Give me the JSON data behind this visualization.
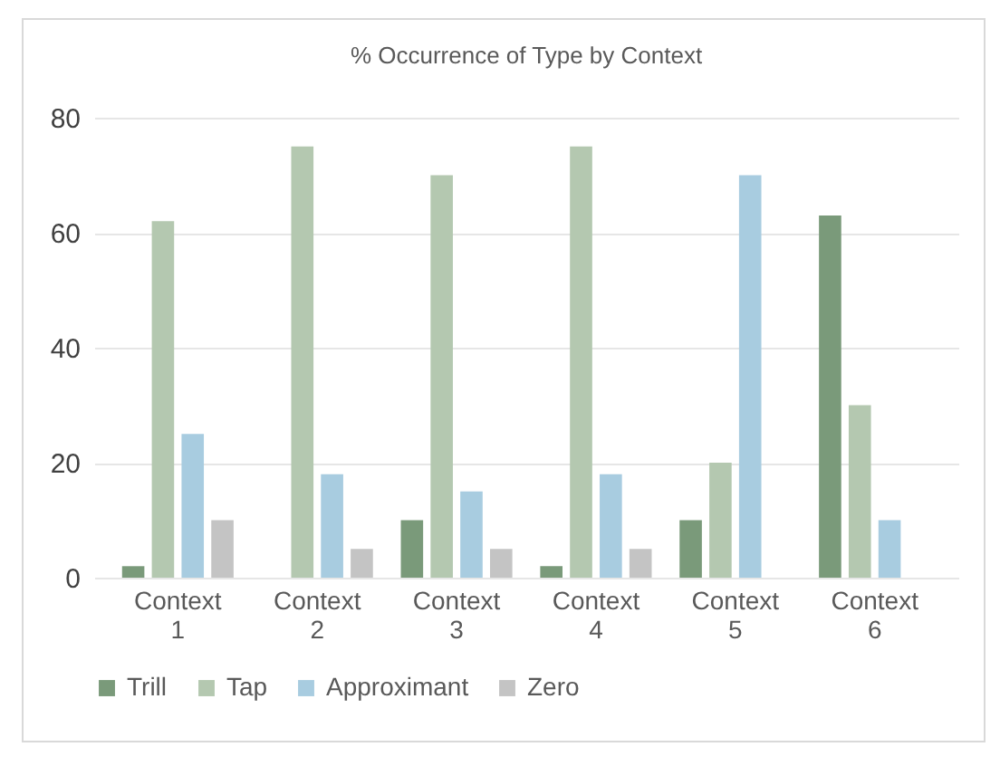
{
  "chart_data": {
    "type": "bar",
    "title": "% Occurrence of Type by Context",
    "categories": [
      "Context 1",
      "Context 2",
      "Context 3",
      "Context 4",
      "Context 5",
      "Context 6"
    ],
    "series": [
      {
        "name": "Trill",
        "color": "#7a9a7a",
        "values": [
          2,
          0,
          10,
          2,
          10,
          63
        ]
      },
      {
        "name": "Tap",
        "color": "#b4c8b0",
        "values": [
          62,
          75,
          70,
          75,
          20,
          30
        ]
      },
      {
        "name": "Approximant",
        "color": "#a8cce0",
        "values": [
          25,
          18,
          15,
          18,
          70,
          10
        ]
      },
      {
        "name": "Zero",
        "color": "#c4c4c4",
        "values": [
          10,
          5,
          5,
          5,
          0,
          0
        ]
      }
    ],
    "ylim": [
      0,
      80
    ],
    "yticks": [
      0,
      20,
      40,
      60,
      80
    ],
    "grid": "y",
    "legend": "bottom"
  }
}
